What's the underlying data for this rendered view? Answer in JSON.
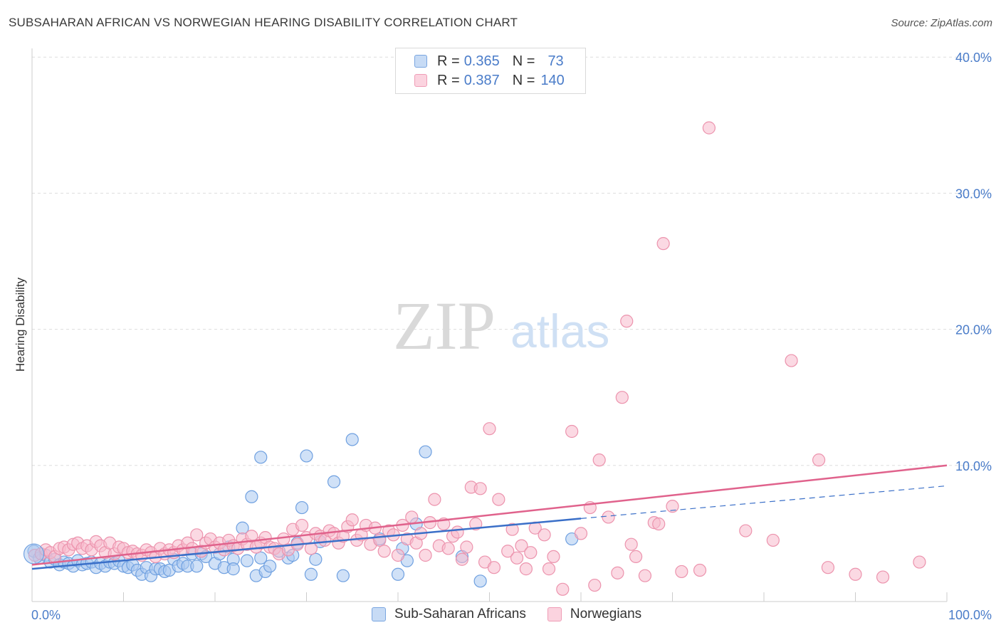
{
  "title": "SUBSAHARAN AFRICAN VS NORWEGIAN HEARING DISABILITY CORRELATION CHART",
  "source": "Source: ZipAtlas.com",
  "watermark": {
    "zip": "ZIP",
    "atlas": "atlas"
  },
  "legend": {
    "rows": [
      {
        "r_label": "R =",
        "r_value": "0.365",
        "n_label": "N =",
        "n_value": "73",
        "color": "#a9c8f0"
      },
      {
        "r_label": "R =",
        "r_value": "0.387",
        "n_label": "N =",
        "n_value": "140",
        "color": "#f7b9cc"
      }
    ]
  },
  "bottom_legend": [
    {
      "label": "Sub-Saharan Africans",
      "color": "#a9c8f0"
    },
    {
      "label": "Norwegians",
      "color": "#f7b9cc"
    }
  ],
  "chart_data": {
    "type": "scatter",
    "title": "SUBSAHARAN AFRICAN VS NORWEGIAN HEARING DISABILITY CORRELATION CHART",
    "xlabel": "",
    "ylabel": "Hearing Disability",
    "xlim": [
      0,
      100
    ],
    "ylim": [
      0,
      42
    ],
    "x_tick_labels": [
      "0.0%",
      "100.0%"
    ],
    "y_ticks": [
      10,
      20,
      30,
      40
    ],
    "y_tick_labels": [
      "10.0%",
      "20.0%",
      "30.0%",
      "40.0%"
    ],
    "grid": true,
    "legend_position": "top-center",
    "series": [
      {
        "name": "Sub-Saharan Africans",
        "color": "#6fa0e0",
        "fill": "#a9c8f0",
        "trend": {
          "x0": 0,
          "y0": 2.4,
          "x1": 60,
          "y1": 6.1,
          "dash_to_x": 100,
          "dash_to_y": 8.5,
          "color": "#3a6fc8"
        },
        "points": [
          [
            0.2,
            3.7
          ],
          [
            0.8,
            3.2
          ],
          [
            1.5,
            3.4
          ],
          [
            2,
            2.9
          ],
          [
            2.5,
            3.1
          ],
          [
            3,
            2.7
          ],
          [
            3.5,
            2.9
          ],
          [
            4,
            2.8
          ],
          [
            4.5,
            2.6
          ],
          [
            5,
            3.0
          ],
          [
            5.5,
            2.7
          ],
          [
            6,
            2.8
          ],
          [
            6.5,
            2.9
          ],
          [
            7,
            2.5
          ],
          [
            7.5,
            2.8
          ],
          [
            8,
            2.6
          ],
          [
            8.5,
            2.9
          ],
          [
            9,
            2.8
          ],
          [
            9.5,
            3.0
          ],
          [
            10,
            2.6
          ],
          [
            10.5,
            2.5
          ],
          [
            11,
            2.7
          ],
          [
            11.5,
            2.3
          ],
          [
            12,
            2.0
          ],
          [
            12.5,
            2.5
          ],
          [
            13,
            1.9
          ],
          [
            13.5,
            2.4
          ],
          [
            14,
            2.4
          ],
          [
            14.5,
            2.2
          ],
          [
            15,
            2.3
          ],
          [
            15.5,
            3.1
          ],
          [
            16,
            2.6
          ],
          [
            16.5,
            2.8
          ],
          [
            17,
            2.6
          ],
          [
            17.5,
            3.5
          ],
          [
            18,
            2.6
          ],
          [
            18.5,
            3.5
          ],
          [
            19,
            3.3
          ],
          [
            20,
            2.8
          ],
          [
            20.5,
            3.5
          ],
          [
            21,
            2.5
          ],
          [
            21.5,
            4.0
          ],
          [
            22,
            3.1
          ],
          [
            22,
            2.4
          ],
          [
            23,
            5.4
          ],
          [
            23.5,
            3.0
          ],
          [
            24,
            7.7
          ],
          [
            24.5,
            1.9
          ],
          [
            25,
            3.2
          ],
          [
            25,
            10.6
          ],
          [
            25.5,
            2.2
          ],
          [
            26,
            2.6
          ],
          [
            27,
            3.7
          ],
          [
            28,
            3.2
          ],
          [
            28.5,
            3.4
          ],
          [
            29,
            4.3
          ],
          [
            29.5,
            6.9
          ],
          [
            30,
            10.7
          ],
          [
            30.5,
            2.0
          ],
          [
            31,
            3.1
          ],
          [
            31.5,
            4.4
          ],
          [
            33,
            8.8
          ],
          [
            34,
            1.9
          ],
          [
            35,
            11.9
          ],
          [
            38,
            4.6
          ],
          [
            40,
            2.0
          ],
          [
            40.5,
            3.9
          ],
          [
            41,
            3.0
          ],
          [
            42,
            5.7
          ],
          [
            43,
            11.0
          ],
          [
            47,
            3.3
          ],
          [
            49,
            1.5
          ],
          [
            59,
            4.6
          ]
        ]
      },
      {
        "name": "Norwegians",
        "color": "#ec93ad",
        "fill": "#f7b9cc",
        "trend": {
          "x0": 0,
          "y0": 2.7,
          "x1": 100,
          "y1": 10.0,
          "color": "#e0628c"
        },
        "points": [
          [
            0.3,
            3.4
          ],
          [
            1,
            3.5
          ],
          [
            1.5,
            3.8
          ],
          [
            2,
            3.6
          ],
          [
            2.5,
            3.3
          ],
          [
            3,
            3.9
          ],
          [
            3.5,
            4.0
          ],
          [
            4,
            3.8
          ],
          [
            4.5,
            4.2
          ],
          [
            5,
            4.3
          ],
          [
            5.5,
            3.9
          ],
          [
            6,
            4.1
          ],
          [
            6.5,
            3.8
          ],
          [
            7,
            4.4
          ],
          [
            7.5,
            4.1
          ],
          [
            8,
            3.6
          ],
          [
            8.5,
            4.3
          ],
          [
            9,
            3.5
          ],
          [
            9.5,
            4.0
          ],
          [
            10,
            3.9
          ],
          [
            10.5,
            3.6
          ],
          [
            11,
            3.7
          ],
          [
            11.5,
            3.5
          ],
          [
            12,
            3.4
          ],
          [
            12.5,
            3.8
          ],
          [
            13,
            3.6
          ],
          [
            13.5,
            3.3
          ],
          [
            14,
            3.9
          ],
          [
            14.5,
            3.5
          ],
          [
            15,
            3.8
          ],
          [
            15.5,
            3.6
          ],
          [
            16,
            4.1
          ],
          [
            16.5,
            3.8
          ],
          [
            17,
            4.3
          ],
          [
            17.5,
            3.9
          ],
          [
            18,
            4.9
          ],
          [
            18.5,
            3.7
          ],
          [
            19,
            4.3
          ],
          [
            19.5,
            4.6
          ],
          [
            20,
            4.0
          ],
          [
            20.5,
            4.3
          ],
          [
            21,
            3.8
          ],
          [
            21.5,
            4.5
          ],
          [
            22,
            4.1
          ],
          [
            22.5,
            3.9
          ],
          [
            23,
            4.6
          ],
          [
            23.5,
            4.2
          ],
          [
            24,
            4.8
          ],
          [
            24.5,
            4.0
          ],
          [
            25,
            4.3
          ],
          [
            25.5,
            4.7
          ],
          [
            26,
            4.0
          ],
          [
            26.5,
            3.9
          ],
          [
            27,
            3.5
          ],
          [
            27.5,
            4.6
          ],
          [
            28,
            3.8
          ],
          [
            28.5,
            5.3
          ],
          [
            29,
            4.2
          ],
          [
            29.5,
            5.6
          ],
          [
            30,
            4.7
          ],
          [
            30.5,
            3.9
          ],
          [
            31,
            5.0
          ],
          [
            31.5,
            4.8
          ],
          [
            32,
            4.5
          ],
          [
            32.5,
            5.2
          ],
          [
            33,
            5.0
          ],
          [
            33.5,
            4.3
          ],
          [
            34,
            4.8
          ],
          [
            34.5,
            5.5
          ],
          [
            35,
            6.0
          ],
          [
            35.5,
            4.5
          ],
          [
            36,
            4.9
          ],
          [
            36.5,
            5.6
          ],
          [
            37,
            4.2
          ],
          [
            37.5,
            5.4
          ],
          [
            38,
            4.5
          ],
          [
            38.5,
            3.7
          ],
          [
            39,
            5.2
          ],
          [
            39.5,
            4.9
          ],
          [
            40,
            3.4
          ],
          [
            40.5,
            5.6
          ],
          [
            41,
            4.6
          ],
          [
            41.5,
            6.2
          ],
          [
            42,
            4.3
          ],
          [
            42.5,
            5.0
          ],
          [
            43,
            3.4
          ],
          [
            43.5,
            5.8
          ],
          [
            44,
            7.5
          ],
          [
            44.5,
            4.1
          ],
          [
            45,
            5.7
          ],
          [
            45.5,
            3.9
          ],
          [
            46,
            4.8
          ],
          [
            46.5,
            5.1
          ],
          [
            47,
            3.1
          ],
          [
            47.5,
            4.0
          ],
          [
            48,
            8.4
          ],
          [
            48.5,
            5.7
          ],
          [
            49,
            8.3
          ],
          [
            49.5,
            2.9
          ],
          [
            50,
            12.7
          ],
          [
            50.5,
            2.5
          ],
          [
            51,
            7.5
          ],
          [
            52,
            3.7
          ],
          [
            52.5,
            5.3
          ],
          [
            53,
            3.2
          ],
          [
            53.5,
            4.1
          ],
          [
            54,
            2.4
          ],
          [
            54.5,
            3.6
          ],
          [
            55,
            5.4
          ],
          [
            56,
            4.9
          ],
          [
            56.5,
            2.4
          ],
          [
            57,
            3.3
          ],
          [
            58,
            0.9
          ],
          [
            59,
            12.5
          ],
          [
            60,
            5.0
          ],
          [
            61,
            6.9
          ],
          [
            61.5,
            1.2
          ],
          [
            62,
            10.4
          ],
          [
            63,
            6.2
          ],
          [
            64,
            2.1
          ],
          [
            64.5,
            15.0
          ],
          [
            65,
            20.6
          ],
          [
            65.5,
            4.2
          ],
          [
            66,
            3.3
          ],
          [
            67,
            1.9
          ],
          [
            68,
            5.8
          ],
          [
            68.5,
            5.7
          ],
          [
            69,
            26.3
          ],
          [
            70,
            7.0
          ],
          [
            71,
            2.2
          ],
          [
            73,
            2.3
          ],
          [
            74,
            34.8
          ],
          [
            78,
            5.2
          ],
          [
            81,
            4.5
          ],
          [
            83,
            17.7
          ],
          [
            86,
            10.4
          ],
          [
            87,
            2.5
          ],
          [
            90,
            2.0
          ],
          [
            93,
            1.8
          ],
          [
            97,
            2.9
          ]
        ]
      }
    ]
  }
}
